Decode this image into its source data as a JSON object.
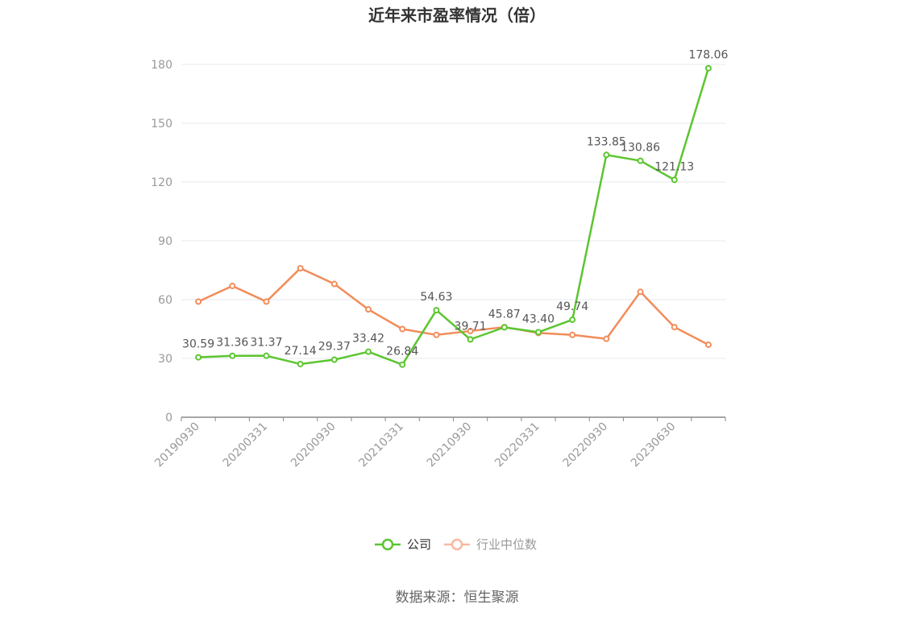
{
  "chart_data": {
    "type": "line",
    "title": "近年来市盈率情况（倍）",
    "source": "数据来源：恒生聚源",
    "ylim": [
      0,
      180
    ],
    "yticks": [
      0,
      30,
      60,
      90,
      120,
      150,
      180
    ],
    "x_tick_labels": [
      "20190930",
      "20200331",
      "20200930",
      "20210331",
      "20210930",
      "20220331",
      "20220930",
      "20230630"
    ],
    "grid": true,
    "legend_position": "bottom",
    "series": [
      {
        "name": "公司",
        "color": "#5cc530",
        "values": [
          30.59,
          31.36,
          31.37,
          27.14,
          29.37,
          33.42,
          26.84,
          54.63,
          39.71,
          45.87,
          43.4,
          49.74,
          133.85,
          130.86,
          121.13,
          178.06
        ],
        "labels": [
          "30.59",
          "31.36",
          "31.37",
          "27.14",
          "29.37",
          "33.42",
          "26.84",
          "54.63",
          "39.71",
          "45.87",
          "43.40",
          "49.74",
          "133.85",
          "130.86",
          "121.13",
          "178.06"
        ]
      },
      {
        "name": "行业中位数",
        "color": "#f28c5a",
        "legend_color": "#f8b9a0",
        "values": [
          59,
          67,
          59,
          76,
          68,
          55,
          45,
          42,
          44,
          46,
          43,
          42,
          40,
          64,
          46,
          37
        ]
      }
    ]
  }
}
